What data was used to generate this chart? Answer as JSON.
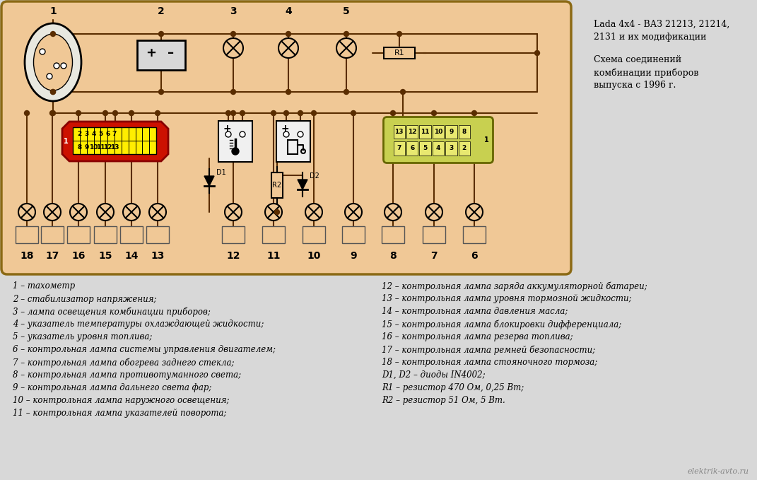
{
  "bg_color": "#f0c896",
  "outer_bg": "#d8d8d8",
  "panel_edge": "#8b6914",
  "title_text_line1": "Lada 4x4 - ВАЗ 21213, 21214,",
  "title_text_line2": "2131 и их модификации",
  "title_text_line3": "Схема соединений",
  "title_text_line4": "комбинации приборов",
  "title_text_line5": "выпуска с 1996 г.",
  "watermark": "elektrik-avto.ru",
  "legend_left": [
    "1 – тахометр",
    "2 – стабилизатор напряжения;",
    "3 – лампа освещения комбинации приборов;",
    "4 – указатель температуры охлаждающей жидкости;",
    "5 – указатель уровня топлива;",
    "6 – контрольная лампа системы управления двигателем;",
    "7 – контрольная лампа обогрева заднего стекла;",
    "8 – контрольная лампа противотуманного света;",
    "9 – контрольная лампа дальнего света фар;",
    "10 – контрольная лампа наружного освещения;",
    "11 – контрольная лампа указателей поворота;"
  ],
  "legend_right": [
    "12 – контрольная лампа заряда аккумуляторной батареи;",
    "13 – контрольная лампа уровня тормозной жидкости;",
    "14 – контрольная лампа давления масла;",
    "15 – контрольная лампа блокировки дифференциала;",
    "16 – контрольная лампа резерва топлива;",
    "17 – контрольная лампа ремней безопасности;",
    "18 – контрольная лампа стояночного тормоза;",
    "D1, D2 – диоды IN4002;",
    "R1 – резистор 470 Ом, 0,25 Вт;",
    "R2 – резистор 51 Ом, 5 Вт."
  ],
  "wire_color": "#5a2d00",
  "lamp_bg": "#f0c896",
  "indicator_count": 13,
  "bottom_labels": [
    "18",
    "17",
    "16",
    "15",
    "14",
    "13",
    "12",
    "11",
    "10",
    "9",
    "8",
    "7",
    "6"
  ],
  "top_labels": [
    "1",
    "2",
    "3",
    "4",
    "5"
  ]
}
